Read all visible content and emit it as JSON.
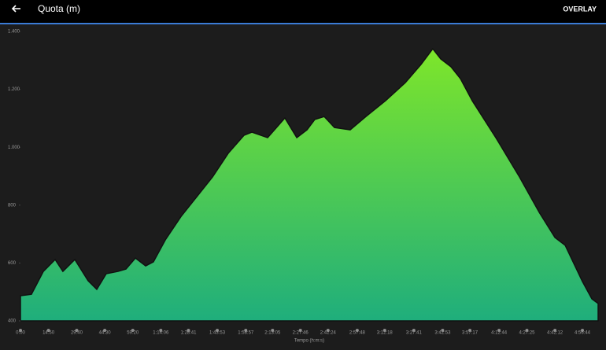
{
  "toolbar": {
    "title": "Quota (m)",
    "action": "OVERLAY"
  },
  "chart_data": {
    "type": "area",
    "x_label": "Tempo (h:m:s)",
    "x": [
      0,
      5.8,
      12.1,
      18.3,
      22.4,
      28.7,
      35.7,
      40.3,
      45.3,
      51.5,
      55.7,
      60.7,
      66.1,
      70.2,
      76.5,
      84.8,
      93.1,
      101.4,
      109.7,
      118.0,
      122.2,
      130.5,
      139.6,
      145.9,
      151.3,
      155.4,
      160.4,
      165.8,
      174.1,
      182.4,
      192.8,
      203.2,
      211.5,
      217.7,
      221.9,
      227.3,
      232.3,
      238.5,
      251.0,
      263.5,
      273.9,
      282.2,
      287.6,
      296.7,
      301.7,
      305.0
    ],
    "values": [
      487,
      492,
      571,
      612,
      571,
      612,
      539,
      509,
      563,
      571,
      579,
      617,
      590,
      604,
      680,
      761,
      829,
      897,
      979,
      1041,
      1052,
      1033,
      1101,
      1033,
      1060,
      1096,
      1106,
      1068,
      1060,
      1106,
      1161,
      1223,
      1286,
      1340,
      1305,
      1278,
      1237,
      1161,
      1033,
      897,
      775,
      688,
      661,
      536,
      476,
      460
    ],
    "color_top": "#7ee62a",
    "color_bottom": "#1fae7c",
    "xlim": [
      0,
      305
    ],
    "ylim": [
      400,
      1400
    ],
    "yticks": [
      {
        "value": 1400,
        "label": "1.400"
      },
      {
        "value": 1200,
        "label": "1.200"
      },
      {
        "value": 1000,
        "label": "1.000"
      },
      800,
      600,
      400
    ],
    "xticks": [
      {
        "value": 0,
        "label": "0:00"
      },
      {
        "value": 14.8,
        "label": "14:50"
      },
      {
        "value": 29.7,
        "label": "29:40"
      },
      {
        "value": 44.5,
        "label": "44:30"
      },
      {
        "value": 59.3,
        "label": "59:20"
      },
      {
        "value": 74.1,
        "label": "1:14:06"
      },
      {
        "value": 88.7,
        "label": "1:28:41"
      },
      {
        "value": 103.9,
        "label": "1:43:53"
      },
      {
        "value": 118.95,
        "label": "1:58:57"
      },
      {
        "value": 133.1,
        "label": "2:13:05"
      },
      {
        "value": 147.8,
        "label": "2:27:46"
      },
      {
        "value": 162.4,
        "label": "2:42:24"
      },
      {
        "value": 177.8,
        "label": "2:57:48"
      },
      {
        "value": 192.3,
        "label": "3:12:18"
      },
      {
        "value": 207.7,
        "label": "3:27:41"
      },
      {
        "value": 222.9,
        "label": "3:42:53"
      },
      {
        "value": 237.3,
        "label": "3:57:17"
      },
      {
        "value": 252.7,
        "label": "4:12:44"
      },
      {
        "value": 267.4,
        "label": "4:27:25"
      },
      {
        "value": 282.2,
        "label": "4:42:12"
      },
      {
        "value": 296.7,
        "label": "4:56:44"
      }
    ]
  }
}
